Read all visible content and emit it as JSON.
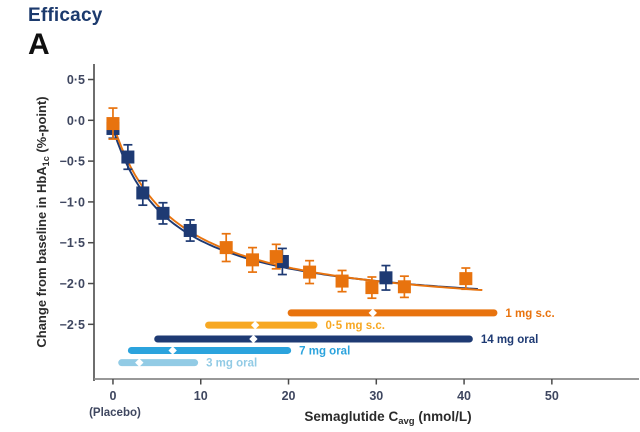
{
  "page": {
    "section_title": "Efficacy",
    "panel_label": "A"
  },
  "colors": {
    "navy": "#1e3a73",
    "orange": "#e8730e",
    "yellow": "#f7a823",
    "blue": "#2ba3dd",
    "light_blue": "#92cbe5",
    "y_axis_line": "#4a4a4a",
    "x_axis_line": "#8a8a8a",
    "tick_text": "#3f4760",
    "axis_title_text": "#2b2b2b"
  },
  "chart_data": {
    "type": "scatter",
    "title": "",
    "xlabel_parts": [
      "Semaglutide C",
      "avg",
      " (nmol/L)"
    ],
    "ylabel_parts": [
      "Change from baseline in HbA",
      "1c",
      " (%-point)"
    ],
    "xlim": [
      -2.16,
      59.7
    ],
    "ylim_top": 0.69,
    "ylim_bottom": -3.17,
    "grid": "off",
    "x_ticks": [
      0,
      10,
      20,
      30,
      40,
      50
    ],
    "x_tick_labels": [
      "0",
      "10",
      "20",
      "30",
      "40",
      "50"
    ],
    "placebo_note": "(Placebo)",
    "y_ticks": [
      0.5,
      0.0,
      -0.5,
      -1.0,
      -1.5,
      -2.0,
      -2.5
    ],
    "y_tick_labels": [
      "0·5",
      "0·0",
      "−0·5",
      "−1·0",
      "−1·5",
      "−2·0",
      "−2·5"
    ],
    "series": [
      {
        "name": "oral semaglutide (navy squares)",
        "color": "#1e3a73",
        "points": [
          {
            "x": 0.0,
            "y": -0.1,
            "err": 0.12
          },
          {
            "x": 1.7,
            "y": -0.45,
            "err": 0.15
          },
          {
            "x": 3.4,
            "y": -0.89,
            "err": 0.15
          },
          {
            "x": 5.7,
            "y": -1.14,
            "err": 0.13
          },
          {
            "x": 8.8,
            "y": -1.35,
            "err": 0.13
          },
          {
            "x": 19.3,
            "y": -1.73,
            "err": 0.16
          },
          {
            "x": 31.1,
            "y": -1.93,
            "err": 0.15
          }
        ]
      },
      {
        "name": "s.c. semaglutide (orange squares)",
        "color": "#e8730e",
        "points": [
          {
            "x": 0.0,
            "y": -0.04,
            "err": 0.19
          },
          {
            "x": 12.9,
            "y": -1.56,
            "err": 0.17
          },
          {
            "x": 15.9,
            "y": -1.71,
            "err": 0.15
          },
          {
            "x": 18.6,
            "y": -1.67,
            "err": 0.15
          },
          {
            "x": 22.4,
            "y": -1.86,
            "err": 0.14
          },
          {
            "x": 26.1,
            "y": -1.97,
            "err": 0.13
          },
          {
            "x": 29.5,
            "y": -2.05,
            "err": 0.13
          },
          {
            "x": 33.2,
            "y": -2.04,
            "err": 0.13
          },
          {
            "x": 40.2,
            "y": -1.94,
            "err": 0.13
          }
        ]
      }
    ],
    "curves": [
      {
        "name": "oral fit",
        "color": "#1e3a73",
        "e0": -0.1,
        "emax": -2.28,
        "ec50": 6.6,
        "x_start": 0,
        "x_end": 41.5
      },
      {
        "name": "s.c. fit",
        "color": "#e8730e",
        "e0": -0.04,
        "emax": -2.38,
        "ec50": 7.0,
        "x_start": 0,
        "x_end": 42.0
      }
    ],
    "dose_bars": [
      {
        "label": "1 mg s.c.",
        "color": "#e8730e",
        "x_start": 19.9,
        "x_end": 43.8,
        "median": 29.6,
        "y": -2.36
      },
      {
        "label": "0·5 mg s.c.",
        "color": "#f7a823",
        "x_start": 10.5,
        "x_end": 23.3,
        "median": 16.2,
        "y": -2.51
      },
      {
        "label": "14 mg oral",
        "color": "#1e3a73",
        "x_start": 4.7,
        "x_end": 41.0,
        "median": 16.0,
        "y": -2.68
      },
      {
        "label": "7 mg oral",
        "color": "#2ba3dd",
        "x_start": 1.7,
        "x_end": 20.3,
        "median": 6.8,
        "y": -2.82
      },
      {
        "label": "3 mg oral",
        "color": "#92cbe5",
        "x_start": 0.6,
        "x_end": 9.7,
        "median": 3.0,
        "y": -2.97
      }
    ]
  }
}
